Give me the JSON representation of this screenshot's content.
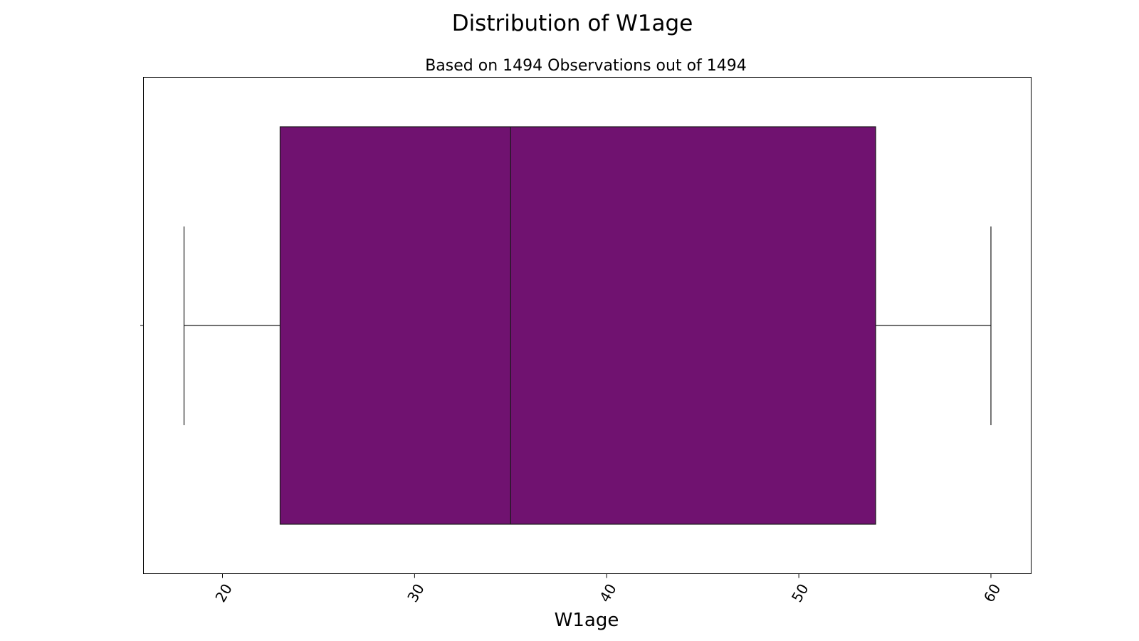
{
  "chart_data": {
    "type": "boxplot",
    "title": "Distribution of W1age",
    "subtitle": "Based on 1494 Observations out of 1494",
    "xlabel": "W1age",
    "ylabel": "",
    "xlim": [
      16,
      62
    ],
    "xticks": [
      20,
      30,
      40,
      50,
      60
    ],
    "box": {
      "whisker_low": 18,
      "q1": 23,
      "median": 35,
      "q3": 54,
      "whisker_high": 60
    },
    "color": "#701270",
    "grid": false
  }
}
